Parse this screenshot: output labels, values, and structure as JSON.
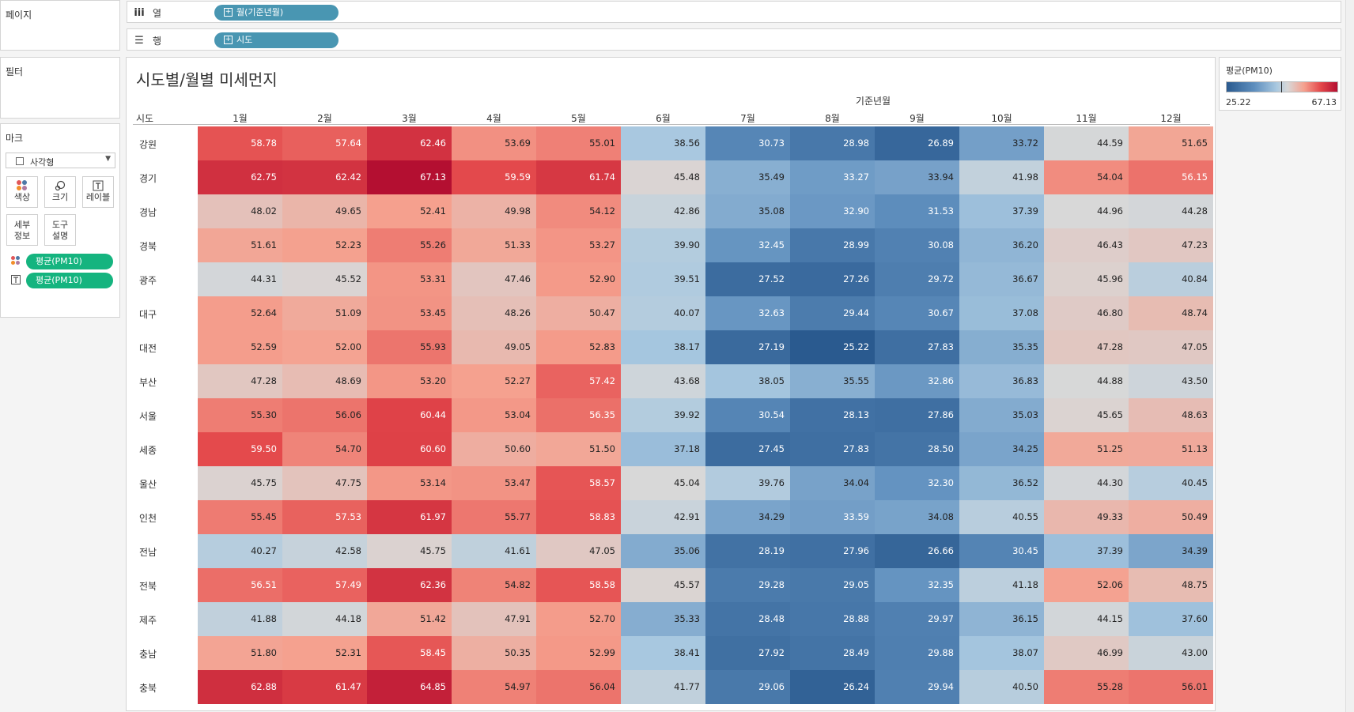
{
  "pages_panel": {
    "title": "페이지"
  },
  "filters_panel": {
    "title": "필터"
  },
  "marks_panel": {
    "title": "마크",
    "mark_type": "사각형",
    "buttons": [
      {
        "icon": "color-icon",
        "label": "색상"
      },
      {
        "icon": "size-icon",
        "label": "크기"
      },
      {
        "icon": "label-icon",
        "label": "레이블"
      },
      {
        "icon": "",
        "label": "세부\n정보"
      },
      {
        "icon": "",
        "label": "도구\n설명"
      }
    ],
    "fields": [
      {
        "icon": "color-dots-icon",
        "label": "평균(PM10)"
      },
      {
        "icon": "text-label-icon",
        "label": "평균(PM10)"
      }
    ]
  },
  "shelves": {
    "columns": {
      "icon": "columns-icon",
      "label": "열",
      "pill": "월(기준년월)"
    },
    "rows": {
      "icon": "rows-icon",
      "label": "행",
      "pill": "시도"
    }
  },
  "view": {
    "title": "시도별/월별 미세먼지"
  },
  "legend": {
    "title": "평균(PM10)",
    "min": "25.22",
    "max": "67.13",
    "colors": {
      "low": "#2a5a8f",
      "mid": "#d8d8d8",
      "high": "#b40f31"
    }
  },
  "chart_data": {
    "type": "heatmap",
    "col_header_title": "기준년월",
    "row_header_title": "시도",
    "columns": [
      "1월",
      "2월",
      "3월",
      "4월",
      "5월",
      "6월",
      "7월",
      "8월",
      "9월",
      "10월",
      "11월",
      "12월"
    ],
    "rows": [
      "강원",
      "경기",
      "경남",
      "경북",
      "광주",
      "대구",
      "대전",
      "부산",
      "서울",
      "세종",
      "울산",
      "인천",
      "전남",
      "전북",
      "제주",
      "충남",
      "충북"
    ],
    "values": [
      [
        58.78,
        57.64,
        62.46,
        53.69,
        55.01,
        38.56,
        30.73,
        28.98,
        26.89,
        33.72,
        44.59,
        51.65
      ],
      [
        62.75,
        62.42,
        67.13,
        59.59,
        61.74,
        45.48,
        35.49,
        33.27,
        33.94,
        41.98,
        54.04,
        56.15
      ],
      [
        48.02,
        49.65,
        52.41,
        49.98,
        54.12,
        42.86,
        35.08,
        32.9,
        31.53,
        37.39,
        44.96,
        44.28
      ],
      [
        51.61,
        52.23,
        55.26,
        51.33,
        53.27,
        39.9,
        32.45,
        28.99,
        30.08,
        36.2,
        46.43,
        47.23
      ],
      [
        44.31,
        45.52,
        53.31,
        47.46,
        52.9,
        39.51,
        27.52,
        27.26,
        29.72,
        36.67,
        45.96,
        40.84
      ],
      [
        52.64,
        51.09,
        53.45,
        48.26,
        50.47,
        40.07,
        32.63,
        29.44,
        30.67,
        37.08,
        46.8,
        48.74
      ],
      [
        52.59,
        52.0,
        55.93,
        49.05,
        52.83,
        38.17,
        27.19,
        25.22,
        27.83,
        35.35,
        47.28,
        47.05
      ],
      [
        47.28,
        48.69,
        53.2,
        52.27,
        57.42,
        43.68,
        38.05,
        35.55,
        32.86,
        36.83,
        44.88,
        43.5
      ],
      [
        55.3,
        56.06,
        60.44,
        53.04,
        56.35,
        39.92,
        30.54,
        28.13,
        27.86,
        35.03,
        45.65,
        48.63
      ],
      [
        59.5,
        54.7,
        60.6,
        50.6,
        51.5,
        37.18,
        27.45,
        27.83,
        28.5,
        34.25,
        51.25,
        51.13
      ],
      [
        45.75,
        47.75,
        53.14,
        53.47,
        58.57,
        45.04,
        39.76,
        34.04,
        32.3,
        36.52,
        44.3,
        40.45
      ],
      [
        55.45,
        57.53,
        61.97,
        55.77,
        58.83,
        42.91,
        34.29,
        33.59,
        34.08,
        40.55,
        49.33,
        50.49
      ],
      [
        40.27,
        42.58,
        45.75,
        41.61,
        47.05,
        35.06,
        28.19,
        27.96,
        26.66,
        30.45,
        37.39,
        34.39
      ],
      [
        56.51,
        57.49,
        62.36,
        54.82,
        58.58,
        45.57,
        29.28,
        29.05,
        32.35,
        41.18,
        52.06,
        48.75
      ],
      [
        41.88,
        44.18,
        51.42,
        47.91,
        52.7,
        35.33,
        28.48,
        28.88,
        29.97,
        36.15,
        44.15,
        37.6
      ],
      [
        51.8,
        52.31,
        58.45,
        50.35,
        52.99,
        38.41,
        27.92,
        28.49,
        29.88,
        38.07,
        46.99,
        43.0
      ],
      [
        62.88,
        61.47,
        64.85,
        54.97,
        56.04,
        41.77,
        29.06,
        26.24,
        29.94,
        40.5,
        55.28,
        56.01
      ]
    ],
    "color_range": [
      25.22,
      67.13
    ],
    "color_center": 45.0
  }
}
